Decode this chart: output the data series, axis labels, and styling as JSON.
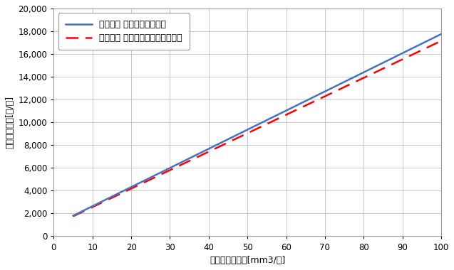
{
  "xlabel": "月間ガス使用量[mm3/月]",
  "ylabel": "推定ガス料金[円/月]",
  "xlim": [
    0,
    100
  ],
  "ylim": [
    0,
    20000
  ],
  "xticks": [
    0,
    10,
    20,
    30,
    40,
    50,
    60,
    70,
    80,
    90,
    100
  ],
  "yticks": [
    0,
    2000,
    4000,
    6000,
    8000,
    10000,
    12000,
    14000,
    16000,
    18000,
    20000
  ],
  "line1_label": "東邦ガス エコジョーズ料金",
  "line1_color": "#4472C4",
  "line2_label": "ガスワン 都市ガスハッピープラン",
  "line2_color": "#FF0000",
  "line1_slope": 167.89,
  "line1_intercept": 961.6,
  "line2_slope": 162.11,
  "line2_intercept": 939.5,
  "background_color": "#FFFFFF",
  "grid_color": "#C0C0C0",
  "legend_fontsize": 9,
  "axis_fontsize": 9,
  "tick_fontsize": 8.5
}
